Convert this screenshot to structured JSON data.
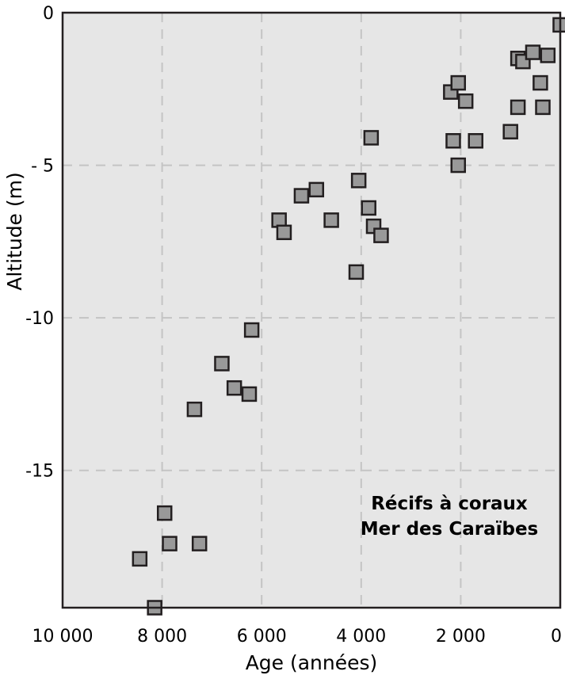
{
  "chart_data": {
    "type": "scatter",
    "xlabel": "Age (années)",
    "ylabel": "Altitude (m)",
    "xlim": [
      10000,
      0
    ],
    "ylim": [
      -19.5,
      0
    ],
    "x_reversed": true,
    "grid": true,
    "x_ticks": [
      {
        "value": 10000,
        "label": "10 000"
      },
      {
        "value": 8000,
        "label": "8 000"
      },
      {
        "value": 6000,
        "label": "6 000"
      },
      {
        "value": 4000,
        "label": "4 000"
      },
      {
        "value": 2000,
        "label": "2 000"
      },
      {
        "value": 0,
        "label": "0"
      }
    ],
    "y_ticks": [
      {
        "value": 0,
        "label": "0"
      },
      {
        "value": -5,
        "label": "- 5"
      },
      {
        "value": -10,
        "label": "-10"
      },
      {
        "value": -15,
        "label": "-15"
      }
    ],
    "annotation": [
      "Récifs à coraux",
      "Mer des Caraïbes"
    ],
    "colors": {
      "background": "#e6e6e6",
      "marker_fill": "#999999",
      "marker_stroke": "#231f20",
      "grid": "#c4c4c4"
    },
    "points": [
      {
        "x": 8150,
        "y": -19.5
      },
      {
        "x": 8450,
        "y": -17.9
      },
      {
        "x": 7850,
        "y": -17.4
      },
      {
        "x": 7250,
        "y": -17.4
      },
      {
        "x": 7950,
        "y": -16.4
      },
      {
        "x": 7350,
        "y": -13.0
      },
      {
        "x": 6250,
        "y": -12.5
      },
      {
        "x": 6550,
        "y": -12.3
      },
      {
        "x": 6800,
        "y": -11.5
      },
      {
        "x": 6200,
        "y": -10.4
      },
      {
        "x": 5650,
        "y": -6.8
      },
      {
        "x": 5550,
        "y": -7.2
      },
      {
        "x": 5200,
        "y": -6.0
      },
      {
        "x": 4900,
        "y": -5.8
      },
      {
        "x": 4600,
        "y": -6.8
      },
      {
        "x": 4050,
        "y": -5.5
      },
      {
        "x": 3850,
        "y": -6.4
      },
      {
        "x": 3750,
        "y": -7.0
      },
      {
        "x": 3600,
        "y": -7.3
      },
      {
        "x": 4100,
        "y": -8.5
      },
      {
        "x": 3800,
        "y": -4.1
      },
      {
        "x": 2200,
        "y": -2.6
      },
      {
        "x": 2050,
        "y": -2.3
      },
      {
        "x": 1900,
        "y": -2.9
      },
      {
        "x": 2150,
        "y": -4.2
      },
      {
        "x": 1700,
        "y": -4.2
      },
      {
        "x": 2050,
        "y": -5.0
      },
      {
        "x": 1000,
        "y": -3.9
      },
      {
        "x": 850,
        "y": -3.1
      },
      {
        "x": 350,
        "y": -3.1
      },
      {
        "x": 400,
        "y": -2.3
      },
      {
        "x": 850,
        "y": -1.5
      },
      {
        "x": 750,
        "y": -1.6
      },
      {
        "x": 550,
        "y": -1.3
      },
      {
        "x": 250,
        "y": -1.4
      },
      {
        "x": 0,
        "y": -0.4
      }
    ]
  }
}
